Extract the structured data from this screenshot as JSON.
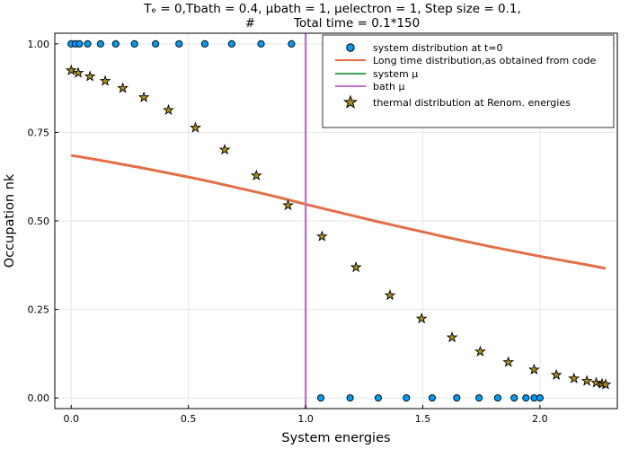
{
  "chart_data": {
    "type": "scatter",
    "title_lines": [
      "Tₑ = 0,Tbath = 0.4, μbath = 1, μelectron = 1, Step size = 0.1,",
      "#          Total time = 0.1*150"
    ],
    "xlabel": "System energies",
    "ylabel": "Occupation nk",
    "xlim": [
      -0.07,
      2.33
    ],
    "ylim": [
      -0.03,
      1.03
    ],
    "xticks": [
      0.0,
      0.5,
      1.0,
      1.5,
      2.0
    ],
    "xtick_labels": [
      "0.0",
      "0.5",
      "1.0",
      "1.5",
      "2.0"
    ],
    "yticks": [
      0.0,
      0.25,
      0.5,
      0.75,
      1.0
    ],
    "ytick_labels": [
      "0.00",
      "0.25",
      "0.50",
      "0.75",
      "1.00"
    ],
    "grid": true,
    "legend_position": "top-right",
    "series": [
      {
        "name": "system distribution at t=0",
        "kind": "scatter",
        "marker": "circle",
        "color": "#009af9",
        "x": [
          0.0,
          0.018,
          0.035,
          0.07,
          0.125,
          0.19,
          0.27,
          0.36,
          0.46,
          0.57,
          0.685,
          0.81,
          0.94,
          1.065,
          1.19,
          1.31,
          1.43,
          1.54,
          1.645,
          1.74,
          1.82,
          1.89,
          1.94,
          1.975,
          2.0
        ],
        "y": [
          1,
          1,
          1,
          1,
          1,
          1,
          1,
          1,
          1,
          1,
          1,
          1,
          1,
          0,
          0,
          0,
          0,
          0,
          0,
          0,
          0,
          0,
          0,
          0,
          0
        ]
      },
      {
        "name": "Long time distribution,as obtained from code",
        "kind": "line",
        "color": "#e26f46",
        "x": [
          0.0,
          0.1,
          0.2,
          0.3,
          0.4,
          0.5,
          0.6,
          0.7,
          0.8,
          0.9,
          1.0,
          1.1,
          1.2,
          1.3,
          1.4,
          1.5,
          1.6,
          1.7,
          1.8,
          1.9,
          2.0,
          2.1,
          2.2,
          2.28
        ],
        "y": [
          0.685,
          0.674,
          0.662,
          0.65,
          0.637,
          0.624,
          0.61,
          0.595,
          0.58,
          0.564,
          0.547,
          0.531,
          0.515,
          0.499,
          0.484,
          0.469,
          0.454,
          0.44,
          0.426,
          0.413,
          0.4,
          0.388,
          0.376,
          0.366
        ]
      },
      {
        "name": "system μ",
        "kind": "vline",
        "color": "#3da44d",
        "x": [
          1.0
        ]
      },
      {
        "name": "bath μ",
        "kind": "vline",
        "color": "#c271d2",
        "x": [
          1.0
        ]
      },
      {
        "name": "thermal distribution at Renom. energies",
        "kind": "scatter",
        "marker": "star",
        "color": "#ac8d18",
        "x": [
          0.0,
          0.03,
          0.08,
          0.145,
          0.22,
          0.31,
          0.415,
          0.53,
          0.655,
          0.79,
          0.925,
          1.07,
          1.215,
          1.36,
          1.495,
          1.625,
          1.745,
          1.865,
          1.975,
          2.07,
          2.145,
          2.2,
          2.24,
          2.265,
          2.28
        ],
        "y": [
          0.925,
          0.918,
          0.908,
          0.895,
          0.875,
          0.849,
          0.813,
          0.763,
          0.701,
          0.628,
          0.544,
          0.456,
          0.369,
          0.29,
          0.224,
          0.171,
          0.131,
          0.101,
          0.08,
          0.065,
          0.055,
          0.048,
          0.043,
          0.04,
          0.038
        ]
      }
    ]
  }
}
